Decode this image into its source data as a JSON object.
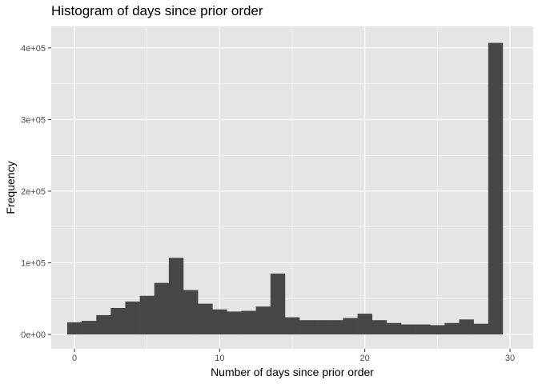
{
  "chart_data": {
    "type": "bar",
    "title": "Histogram of days since prior order",
    "xlabel": "Number of days since prior order",
    "ylabel": "Frequency",
    "bin_width": 1,
    "x": [
      0,
      1,
      2,
      3,
      4,
      5,
      6,
      7,
      8,
      9,
      10,
      11,
      12,
      13,
      14,
      15,
      16,
      17,
      18,
      19,
      20,
      21,
      22,
      23,
      24,
      25,
      26,
      27,
      28,
      29,
      30
    ],
    "values": [
      17000,
      19000,
      27000,
      37000,
      46000,
      54000,
      72000,
      107000,
      62000,
      43000,
      35000,
      32000,
      33000,
      39000,
      85000,
      24000,
      20000,
      20000,
      20000,
      23000,
      29000,
      20000,
      16000,
      14000,
      14000,
      13000,
      16000,
      21000,
      15000,
      407000,
      0
    ],
    "xlim": [
      -1.6,
      31.6
    ],
    "ylim": [
      -20000,
      430000
    ],
    "x_ticks": [
      0,
      10,
      20,
      30
    ],
    "x_tick_labels": [
      "0",
      "10",
      "20",
      "30"
    ],
    "y_ticks": [
      0,
      100000,
      200000,
      300000,
      400000
    ],
    "y_tick_labels": [
      "0e+00",
      "1e+05",
      "2e+05",
      "3e+05",
      "4e+05"
    ],
    "grid": true,
    "bar_color": "#474747",
    "panel_background": "#e5e5e5",
    "grid_color": "#ffffff"
  }
}
